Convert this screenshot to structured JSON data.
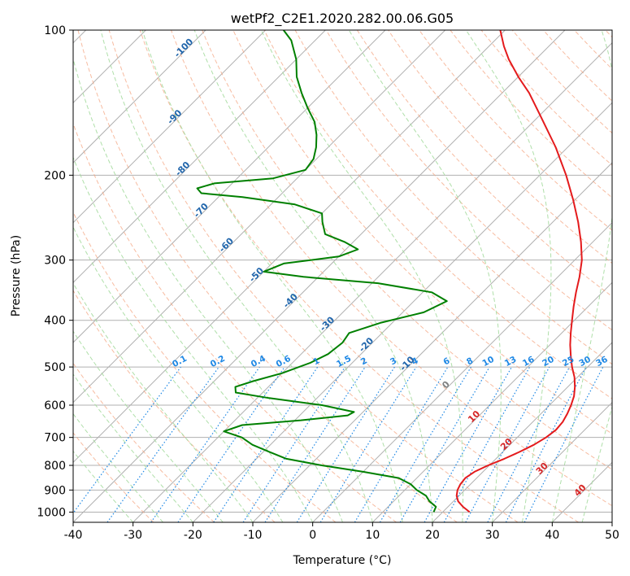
{
  "chart_data": {
    "type": "line",
    "chart_kind": "skew-t log-p",
    "title": "wetPf2_C2E1.2020.282.00.06.G05",
    "xlabel": "Temperature (°C)",
    "ylabel": "Pressure (hPa)",
    "xlim": [
      -40,
      50
    ],
    "ylim": [
      1050,
      100
    ],
    "y_scale": "log",
    "x_ticks": [
      -40,
      -30,
      -20,
      -10,
      0,
      10,
      20,
      30,
      40,
      50
    ],
    "y_ticks": [
      100,
      200,
      300,
      400,
      500,
      600,
      700,
      800,
      900,
      1000
    ],
    "grid": true,
    "series": [
      {
        "key": "temperature",
        "color": "#e41a1c",
        "points": [
          [
            1000,
            24.5
          ],
          [
            975,
            22.5
          ],
          [
            950,
            20.8
          ],
          [
            925,
            19.6
          ],
          [
            900,
            18.8
          ],
          [
            875,
            18.3
          ],
          [
            850,
            18.1
          ],
          [
            825,
            18.6
          ],
          [
            800,
            19.8
          ],
          [
            775,
            21.4
          ],
          [
            750,
            22.8
          ],
          [
            725,
            24.0
          ],
          [
            700,
            24.8
          ],
          [
            675,
            25.2
          ],
          [
            650,
            25.0
          ],
          [
            625,
            24.4
          ],
          [
            600,
            23.6
          ],
          [
            575,
            22.6
          ],
          [
            550,
            21.2
          ],
          [
            525,
            19.5
          ],
          [
            500,
            17.4
          ],
          [
            475,
            15.4
          ],
          [
            450,
            13.4
          ],
          [
            425,
            11.5
          ],
          [
            400,
            9.6
          ],
          [
            375,
            7.6
          ],
          [
            350,
            5.6
          ],
          [
            325,
            3.6
          ],
          [
            300,
            1.2
          ],
          [
            275,
            -2.0
          ],
          [
            250,
            -5.8
          ],
          [
            225,
            -10.3
          ],
          [
            200,
            -15.6
          ],
          [
            175,
            -22.0
          ],
          [
            150,
            -30.0
          ],
          [
            135,
            -35.5
          ],
          [
            125,
            -40.0
          ],
          [
            115,
            -44.5
          ],
          [
            108,
            -47.5
          ],
          [
            100,
            -50.8
          ]
        ]
      },
      {
        "key": "dewpoint",
        "color": "#008000",
        "points": [
          [
            1000,
            18.5
          ],
          [
            975,
            18.0
          ],
          [
            950,
            16.0
          ],
          [
            925,
            14.5
          ],
          [
            900,
            12.0
          ],
          [
            875,
            10.0
          ],
          [
            850,
            7.0
          ],
          [
            825,
            0.0
          ],
          [
            800,
            -8.0
          ],
          [
            775,
            -15.0
          ],
          [
            750,
            -19.0
          ],
          [
            725,
            -23.0
          ],
          [
            700,
            -26.0
          ],
          [
            680,
            -30.0
          ],
          [
            660,
            -28.0
          ],
          [
            645,
            -19.0
          ],
          [
            630,
            -12.0
          ],
          [
            620,
            -11.5
          ],
          [
            600,
            -18.0
          ],
          [
            580,
            -28.0
          ],
          [
            565,
            -34.5
          ],
          [
            550,
            -35.5
          ],
          [
            535,
            -33.5
          ],
          [
            515,
            -30.0
          ],
          [
            490,
            -27.0
          ],
          [
            470,
            -25.5
          ],
          [
            445,
            -25.0
          ],
          [
            425,
            -25.5
          ],
          [
            405,
            -22.0
          ],
          [
            385,
            -16.5
          ],
          [
            365,
            -14.5
          ],
          [
            350,
            -18.5
          ],
          [
            335,
            -29.0
          ],
          [
            325,
            -42.5
          ],
          [
            317,
            -50.0
          ],
          [
            305,
            -48.0
          ],
          [
            295,
            -40.0
          ],
          [
            285,
            -38.0
          ],
          [
            275,
            -41.5
          ],
          [
            265,
            -46.0
          ],
          [
            250,
            -48.5
          ],
          [
            240,
            -50.0
          ],
          [
            230,
            -56.0
          ],
          [
            222,
            -66.0
          ],
          [
            218,
            -73.5
          ],
          [
            213,
            -75.0
          ],
          [
            208,
            -73.0
          ],
          [
            203,
            -64.0
          ],
          [
            195,
            -60.0
          ],
          [
            185,
            -60.5
          ],
          [
            175,
            -62.0
          ],
          [
            165,
            -64.0
          ],
          [
            155,
            -66.5
          ],
          [
            145,
            -70.0
          ],
          [
            135,
            -73.5
          ],
          [
            125,
            -77.0
          ],
          [
            115,
            -80.0
          ],
          [
            105,
            -84.0
          ],
          [
            100,
            -87.0
          ]
        ]
      }
    ],
    "dry_adiabats_label_values": [
      -100,
      -90,
      -80,
      -70,
      -60,
      -50,
      -40,
      -30,
      -20,
      -10,
      0,
      10,
      20,
      30,
      40
    ],
    "mixing_ratio_labels": [
      "0.1",
      "0.2",
      "0.4",
      "0.6",
      "1",
      "1.5",
      "2",
      "3",
      "4",
      "6",
      "8",
      "10",
      "13",
      "16",
      "20",
      "25",
      "30",
      "36"
    ],
    "colors": {
      "isotherm": "#b0b0b0",
      "isobar": "#b0b0b0",
      "dry_adiabat": "#f4a582",
      "moist_adiabat": "#a6dba0",
      "mixing_ratio": "#1e88e5",
      "adiabat_label_cold": "#2166ac",
      "adiabat_label_hot": "#d62728",
      "adiabat_label_zero": "#808080"
    }
  }
}
